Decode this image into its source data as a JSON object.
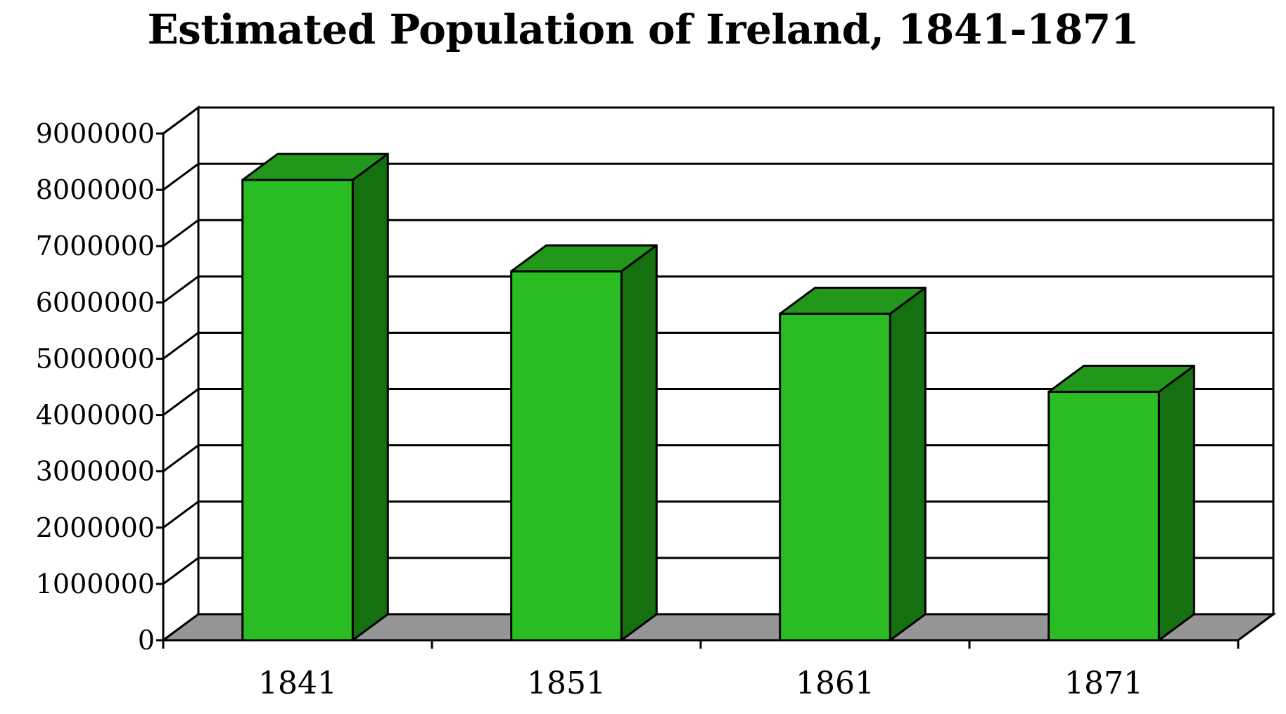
{
  "chart_data": {
    "type": "bar",
    "title": "Estimated Population of Ireland, 1841-1871",
    "xlabel": "",
    "ylabel": "",
    "categories": [
      "1841",
      "1851",
      "1861",
      "1871"
    ],
    "values": [
      8175124,
      6552385,
      5798967,
      4412000
    ],
    "ylim": [
      0,
      9000000
    ],
    "yticks": [
      "0",
      "1000000",
      "2000000",
      "3000000",
      "4000000",
      "5000000",
      "6000000",
      "7000000",
      "8000000",
      "9000000"
    ],
    "grid": true,
    "legend": "none",
    "style": "3d",
    "colors": {
      "bar_front": "#2abd23",
      "bar_top": "#21981b",
      "bar_side": "#15710f",
      "floor": "#969696",
      "grid": "#000000"
    }
  }
}
